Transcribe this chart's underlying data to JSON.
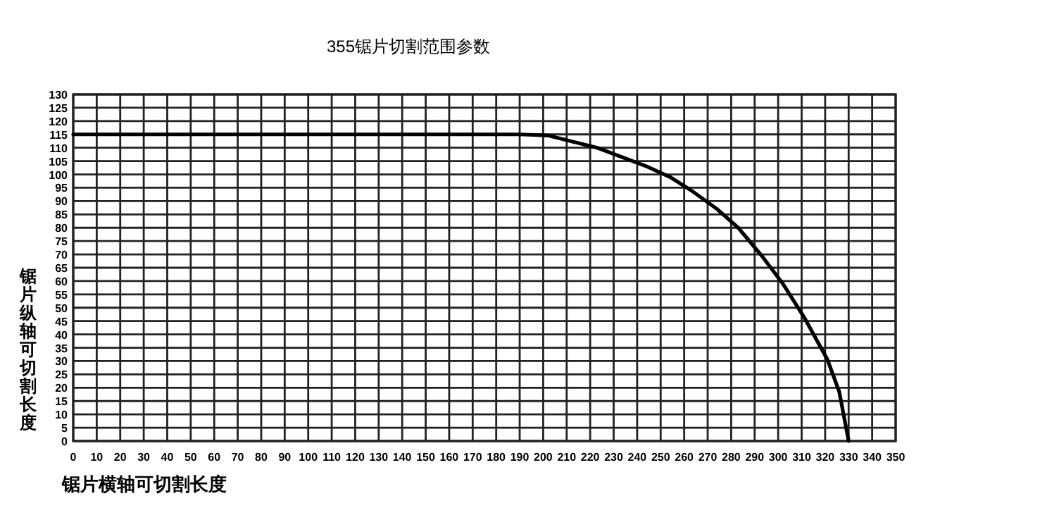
{
  "chart_data": {
    "type": "line",
    "title": "355锯片切割范围参数",
    "xlabel": "锯片横轴可切割长度",
    "ylabel": "锯片纵轴可切割长度",
    "x": [
      0,
      190,
      202,
      223,
      244,
      254,
      263,
      274,
      283,
      293,
      302,
      311,
      321,
      326,
      330
    ],
    "series": [
      {
        "color": "#000000",
        "values": [
          115,
          115,
          114.6,
          110,
          103,
          99,
          94,
          87,
          80,
          69.5,
          59,
          46.5,
          30.5,
          18.5,
          0
        ]
      }
    ],
    "xlim": [
      0,
      350
    ],
    "xticks": [
      0,
      10,
      20,
      30,
      40,
      50,
      60,
      70,
      80,
      90,
      100,
      110,
      120,
      130,
      140,
      150,
      160,
      170,
      180,
      190,
      200,
      210,
      220,
      230,
      240,
      250,
      260,
      270,
      280,
      290,
      300,
      310,
      320,
      330,
      340,
      350
    ],
    "ylim": [
      0,
      130
    ],
    "yticks": [
      0,
      5,
      10,
      15,
      20,
      25,
      30,
      35,
      40,
      45,
      50,
      55,
      60,
      65,
      70,
      75,
      80,
      85,
      90,
      95,
      100,
      105,
      110,
      115,
      120,
      125,
      130
    ],
    "grid": true
  }
}
